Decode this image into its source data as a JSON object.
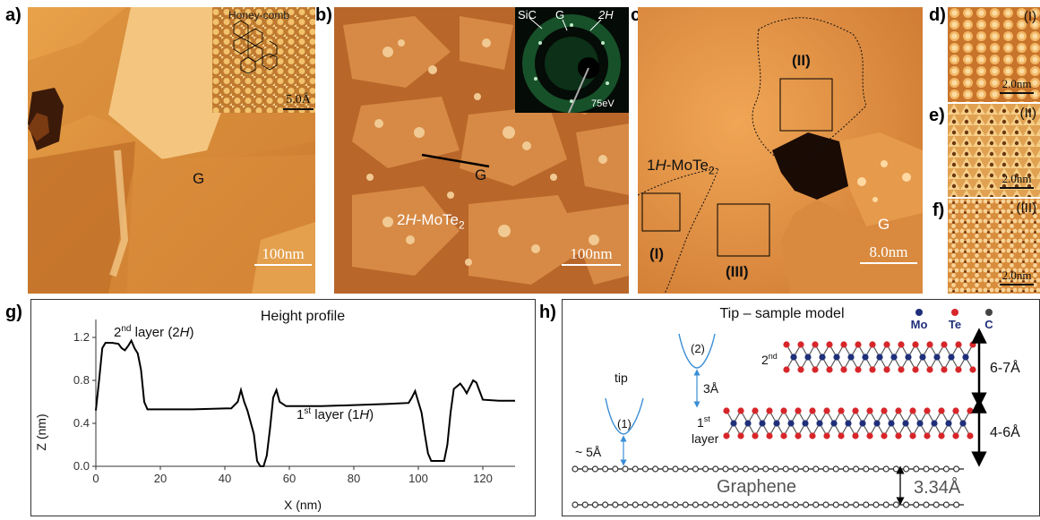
{
  "labels": {
    "a": "a)",
    "b": "b)",
    "c": "c)",
    "d": "d)",
    "e": "e)",
    "f": "f)",
    "g": "g)",
    "h": "h)"
  },
  "panel_a": {
    "inset_label": "Honey-comb",
    "inset_scale": "5.0Å",
    "region_label": "G",
    "scale": "100nm"
  },
  "panel_b": {
    "leed_labels": [
      "SiC",
      "G",
      "2H"
    ],
    "leed_energy": "75eV",
    "region_g": "G",
    "region_mote2_prefix": "2",
    "region_mote2_italic": "H",
    "region_mote2_suffix": "-MoTe",
    "region_mote2_sub": "2",
    "scale": "100nm"
  },
  "panel_c": {
    "phase_prefix": "1",
    "phase_italic": "H",
    "phase_suffix": "-MoTe",
    "phase_sub": "2",
    "region_I": "(I)",
    "region_II": "(II)",
    "region_III": "(III)",
    "region_g": "G",
    "scale": "8.0nm"
  },
  "panel_d": {
    "tag": "(I)",
    "scale": "2.0nm"
  },
  "panel_e": {
    "tag": "(II)",
    "scale": "2.0nm"
  },
  "panel_f": {
    "tag": "(III)",
    "scale": "2.0nm"
  },
  "panel_g": {
    "title": "Height profile",
    "annot_2nd": {
      "num": "2",
      "sup": "nd",
      "text": " layer (2",
      "italic": "H",
      "close": ")"
    },
    "annot_1st": {
      "num": "1",
      "sup": "st",
      "text": " layer (1",
      "italic": "H",
      "close": ")"
    }
  },
  "panel_h": {
    "title": "Tip – sample model",
    "legend": [
      {
        "label": "Mo",
        "color": "#1f2f7a"
      },
      {
        "label": "Te",
        "color": "#d7262a"
      },
      {
        "label": "C",
        "color": "#444444"
      }
    ],
    "tip_label": "tip",
    "tip1": "(1)",
    "tip2": "(2)",
    "gap_5": "~ 5Å",
    "gap_3": "3Å",
    "layer2": {
      "num": "2",
      "sup": "nd"
    },
    "layer1": {
      "num": "1",
      "sup": "st",
      "word": "layer"
    },
    "h_67": "6-7Å",
    "h_46": "4-6Å",
    "graphene": "Graphene",
    "h_334": "3.34Å"
  },
  "chart_data": {
    "type": "line",
    "title": "Height profile",
    "xlabel": "X (nm)",
    "ylabel": "Z (nm)",
    "xlim": [
      0,
      130
    ],
    "ylim": [
      0,
      1.3
    ],
    "xticks": [
      0,
      20,
      40,
      60,
      80,
      100,
      120
    ],
    "yticks": [
      0.0,
      0.4,
      0.8,
      1.2
    ],
    "series": [
      {
        "values": [
          [
            0,
            0.52
          ],
          [
            1,
            0.8
          ],
          [
            2,
            1.1
          ],
          [
            3,
            1.15
          ],
          [
            5,
            1.15
          ],
          [
            7,
            1.14
          ],
          [
            8,
            1.1
          ],
          [
            9,
            1.08
          ],
          [
            10,
            1.12
          ],
          [
            11,
            1.17
          ],
          [
            12,
            1.1
          ],
          [
            13,
            1.05
          ],
          [
            14,
            0.9
          ],
          [
            15,
            0.6
          ],
          [
            16,
            0.53
          ],
          [
            20,
            0.53
          ],
          [
            30,
            0.53
          ],
          [
            42,
            0.54
          ],
          [
            44,
            0.6
          ],
          [
            45,
            0.71
          ],
          [
            46,
            0.6
          ],
          [
            47,
            0.52
          ],
          [
            49,
            0.3
          ],
          [
            50,
            0.05
          ],
          [
            51,
            0.0
          ],
          [
            52,
            0.0
          ],
          [
            53,
            0.1
          ],
          [
            54,
            0.35
          ],
          [
            55,
            0.64
          ],
          [
            56,
            0.71
          ],
          [
            57,
            0.6
          ],
          [
            59,
            0.56
          ],
          [
            70,
            0.56
          ],
          [
            80,
            0.57
          ],
          [
            90,
            0.58
          ],
          [
            97,
            0.59
          ],
          [
            98,
            0.64
          ],
          [
            99,
            0.7
          ],
          [
            100,
            0.6
          ],
          [
            101,
            0.5
          ],
          [
            102,
            0.3
          ],
          [
            103,
            0.12
          ],
          [
            104,
            0.05
          ],
          [
            108,
            0.05
          ],
          [
            109,
            0.2
          ],
          [
            110,
            0.5
          ],
          [
            111,
            0.72
          ],
          [
            113,
            0.77
          ],
          [
            114,
            0.73
          ],
          [
            115,
            0.68
          ],
          [
            116,
            0.74
          ],
          [
            117,
            0.8
          ],
          [
            118,
            0.78
          ],
          [
            119,
            0.7
          ],
          [
            120,
            0.62
          ],
          [
            125,
            0.61
          ],
          [
            130,
            0.61
          ]
        ]
      }
    ]
  }
}
